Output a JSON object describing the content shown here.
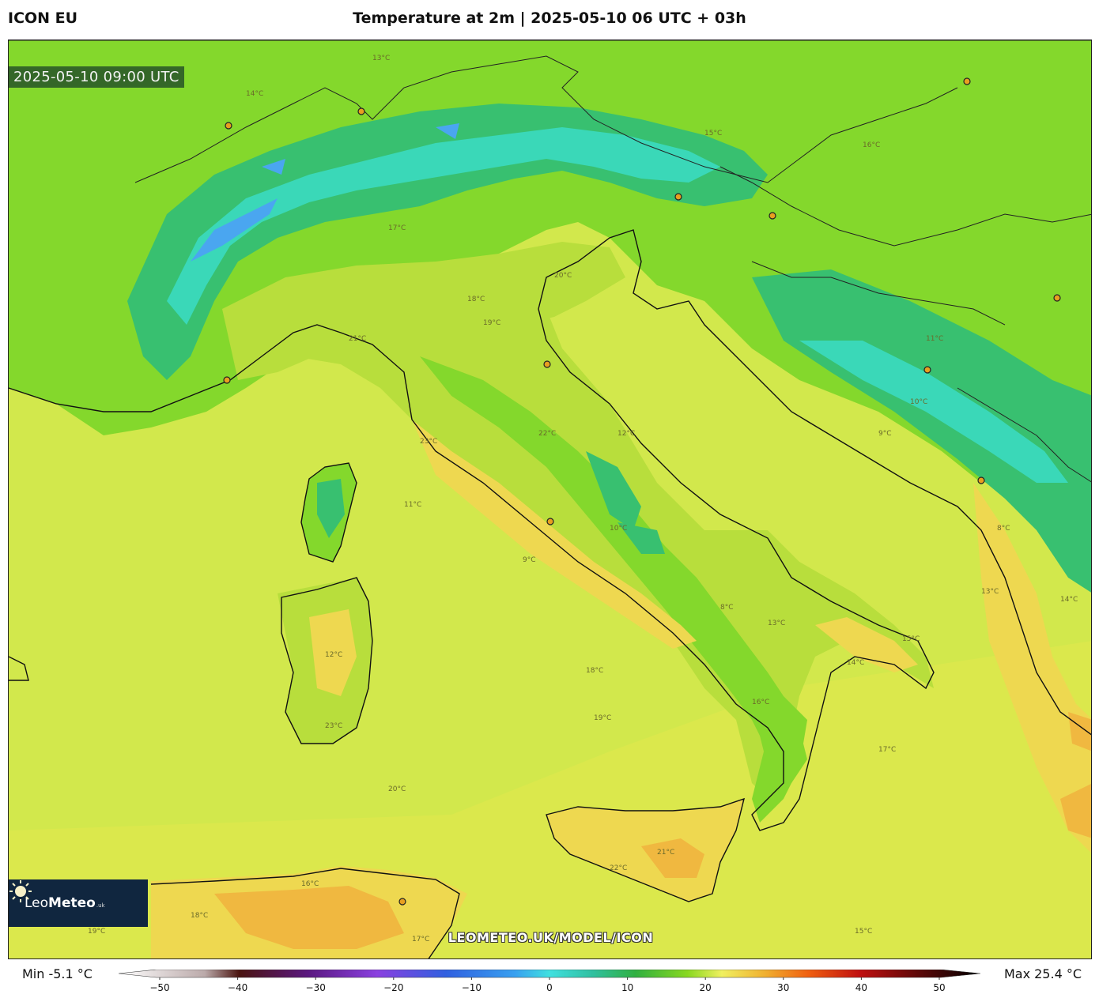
{
  "header": {
    "model_name": "ICON EU",
    "title": "Temperature at 2m | 2025-05-10 06 UTC + 03h"
  },
  "map": {
    "valid_time": "2025-05-10 09:00 UTC",
    "watermark": "LEOMETEO.UK/MODEL/ICON",
    "logo": {
      "prefix": "Leo",
      "name": "Meteo",
      "suffix": ".uk"
    },
    "colors": {
      "sea": "#d2e84c",
      "lowland": "#b8de3c",
      "warm": "#eed850",
      "hot": "#f0b840",
      "mountain": "#38c070",
      "high_mountain": "#3ad8b8",
      "snow": "#4aa6f0",
      "green_land": "#84d82c"
    },
    "contour_labels": [
      "13°C",
      "14°C",
      "15°C",
      "16°C",
      "17°C",
      "18°C",
      "19°C",
      "20°C",
      "21°C",
      "22°C",
      "23°C",
      "12°C",
      "11°C",
      "10°C",
      "9°C",
      "8°C"
    ]
  },
  "legend": {
    "min_label": "Min -5.1 °C",
    "max_label": "Max 25.4 °C",
    "ticks": [
      "−50",
      "−40",
      "−30",
      "−20",
      "−10",
      "0",
      "10",
      "20",
      "30",
      "40",
      "50"
    ],
    "scale": {
      "min": -50,
      "max": 50
    }
  }
}
